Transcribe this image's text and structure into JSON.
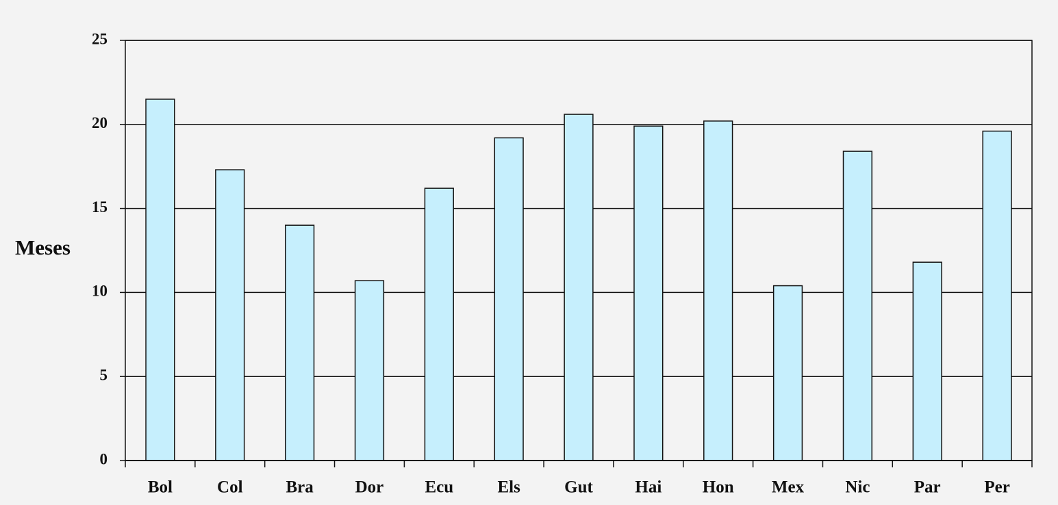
{
  "chart_data": {
    "type": "bar",
    "y_axis_label": "Meses",
    "categories": [
      "Bol",
      "Col",
      "Bra",
      "Dor",
      "Ecu",
      "Els",
      "Gut",
      "Hai",
      "Hon",
      "Mex",
      "Nic",
      "Par",
      "Per"
    ],
    "values": [
      21.5,
      17.3,
      14.0,
      10.7,
      16.2,
      19.2,
      20.6,
      19.9,
      20.2,
      10.4,
      18.4,
      11.8,
      19.6
    ],
    "color": "#c6effd",
    "ylim": [
      0,
      25
    ],
    "yticks": [
      0,
      5,
      10,
      15,
      20,
      25
    ],
    "grid": true
  }
}
